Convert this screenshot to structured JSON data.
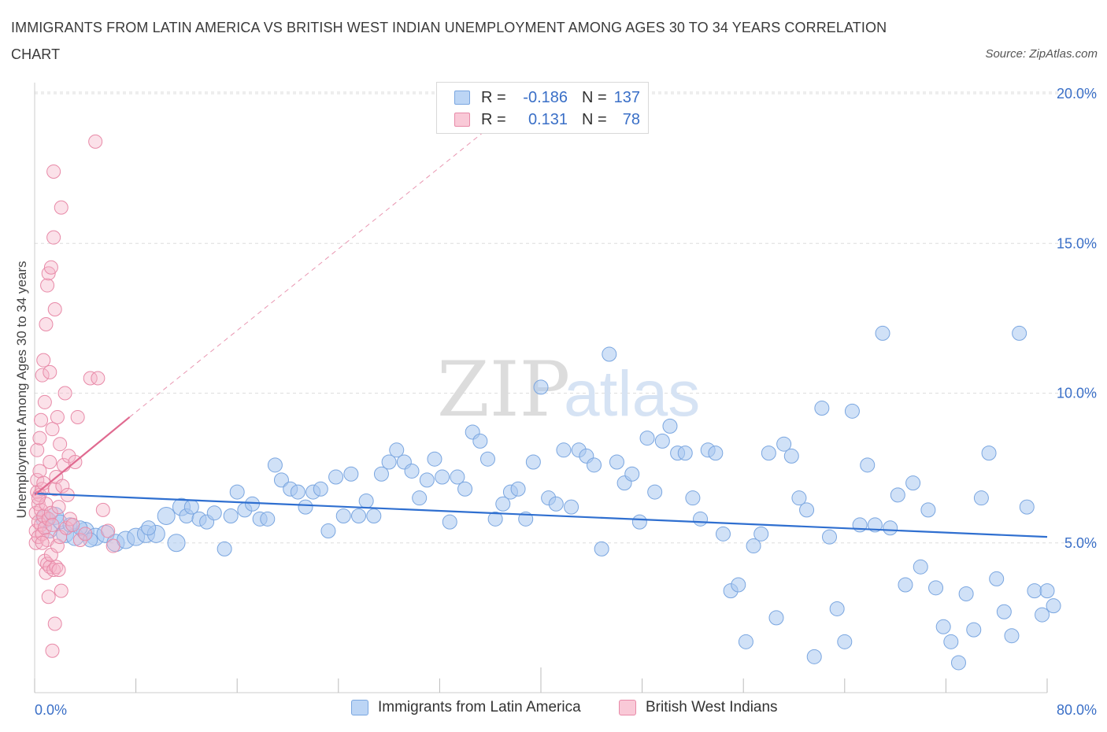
{
  "title": "IMMIGRANTS FROM LATIN AMERICA VS BRITISH WEST INDIAN UNEMPLOYMENT AMONG AGES 30 TO 34 YEARS CORRELATION CHART",
  "source": "Source: ZipAtlas.com",
  "watermark": {
    "zip": "ZIP",
    "atlas": "atlas"
  },
  "legend": {
    "series1": {
      "r_label": "R =",
      "r_value": "-0.186",
      "n_label": "N =",
      "n_value": "137",
      "color": "#a9c8f0"
    },
    "series2": {
      "r_label": "R =",
      "r_value": "0.131",
      "n_label": "N =",
      "n_value": "78",
      "color": "#f5b5c8"
    }
  },
  "bottom_legend": {
    "series1_label": "Immigrants from Latin America",
    "series2_label": "British West Indians"
  },
  "chart_data": {
    "type": "scatter",
    "title": "IMMIGRANTS FROM LATIN AMERICA VS BRITISH WEST INDIAN UNEMPLOYMENT AMONG AGES 30 TO 34 YEARS CORRELATION CHART",
    "xlabel": "",
    "ylabel": "Unemployment Among Ages 30 to 34 years",
    "xlim": [
      0,
      80
    ],
    "ylim": [
      0,
      20.5
    ],
    "x_tick_labels": [
      "0.0%",
      "80.0%"
    ],
    "y_ticks": [
      5,
      10,
      15,
      20
    ],
    "y_tick_labels": [
      "5.0%",
      "10.0%",
      "15.0%",
      "20.0%"
    ],
    "colors": {
      "series1": "#a9c8f0",
      "series1_edge": "#7aa6e0",
      "series1_line": "#2f6fd0",
      "series2": "#f5b5c8",
      "series2_edge": "#e88aa8",
      "series2_line": "#e06a90",
      "axis_text": "#3a6fc7",
      "grid": "#dddddd"
    },
    "series": [
      {
        "name": "Immigrants from Latin America",
        "trend": {
          "x": [
            0,
            80
          ],
          "y": [
            6.65,
            5.2
          ]
        },
        "points": [
          [
            0.8,
            5.8
          ],
          [
            1.6,
            5.9
          ],
          [
            2.4,
            5.3
          ],
          [
            3.2,
            5.2
          ],
          [
            4.0,
            5.4
          ],
          [
            4.8,
            5.2
          ],
          [
            5.6,
            5.3
          ],
          [
            6.4,
            5.0
          ],
          [
            7.2,
            5.1
          ],
          [
            8.0,
            5.2
          ],
          [
            8.8,
            5.3
          ],
          [
            9.6,
            5.3
          ],
          [
            10.4,
            5.9
          ],
          [
            11.2,
            5.0
          ],
          [
            11.6,
            6.2
          ],
          [
            12.0,
            5.9
          ],
          [
            12.4,
            6.2
          ],
          [
            13.0,
            5.8
          ],
          [
            13.6,
            5.7
          ],
          [
            14.2,
            6.0
          ],
          [
            15.0,
            4.8
          ],
          [
            15.5,
            5.9
          ],
          [
            16.0,
            6.7
          ],
          [
            16.6,
            6.1
          ],
          [
            17.2,
            6.3
          ],
          [
            17.8,
            5.8
          ],
          [
            18.4,
            5.8
          ],
          [
            19.0,
            7.6
          ],
          [
            19.5,
            7.1
          ],
          [
            20.2,
            6.8
          ],
          [
            20.8,
            6.7
          ],
          [
            21.4,
            6.2
          ],
          [
            22.0,
            6.7
          ],
          [
            22.6,
            6.8
          ],
          [
            23.2,
            5.4
          ],
          [
            23.8,
            7.2
          ],
          [
            24.4,
            5.9
          ],
          [
            25.0,
            7.3
          ],
          [
            25.6,
            5.9
          ],
          [
            26.2,
            6.4
          ],
          [
            26.8,
            5.9
          ],
          [
            27.4,
            7.3
          ],
          [
            28.0,
            7.7
          ],
          [
            28.6,
            8.1
          ],
          [
            29.2,
            7.7
          ],
          [
            29.8,
            7.4
          ],
          [
            30.4,
            6.5
          ],
          [
            31.0,
            7.1
          ],
          [
            31.6,
            7.8
          ],
          [
            32.2,
            7.2
          ],
          [
            32.8,
            5.7
          ],
          [
            33.4,
            7.2
          ],
          [
            34.0,
            6.8
          ],
          [
            34.6,
            8.7
          ],
          [
            35.2,
            8.4
          ],
          [
            35.8,
            7.8
          ],
          [
            36.4,
            5.8
          ],
          [
            37.0,
            6.3
          ],
          [
            37.6,
            6.7
          ],
          [
            38.2,
            6.8
          ],
          [
            38.8,
            5.8
          ],
          [
            39.4,
            7.7
          ],
          [
            40.0,
            10.2
          ],
          [
            40.6,
            6.5
          ],
          [
            41.2,
            6.3
          ],
          [
            41.8,
            8.1
          ],
          [
            42.4,
            6.2
          ],
          [
            43.0,
            8.1
          ],
          [
            43.6,
            7.9
          ],
          [
            44.2,
            7.6
          ],
          [
            44.8,
            4.8
          ],
          [
            45.4,
            11.3
          ],
          [
            46.0,
            7.7
          ],
          [
            46.6,
            7.0
          ],
          [
            47.2,
            7.3
          ],
          [
            47.8,
            5.7
          ],
          [
            48.4,
            8.5
          ],
          [
            49.0,
            6.7
          ],
          [
            49.6,
            8.4
          ],
          [
            50.2,
            8.9
          ],
          [
            50.8,
            8.0
          ],
          [
            51.4,
            8.0
          ],
          [
            52.0,
            6.5
          ],
          [
            52.6,
            5.8
          ],
          [
            53.2,
            8.1
          ],
          [
            53.8,
            8.0
          ],
          [
            54.4,
            5.3
          ],
          [
            55.0,
            3.4
          ],
          [
            55.6,
            3.6
          ],
          [
            56.2,
            1.7
          ],
          [
            56.8,
            4.9
          ],
          [
            57.4,
            5.3
          ],
          [
            58.0,
            8.0
          ],
          [
            58.6,
            2.5
          ],
          [
            59.2,
            8.3
          ],
          [
            59.8,
            7.9
          ],
          [
            60.4,
            6.5
          ],
          [
            61.0,
            6.1
          ],
          [
            61.6,
            1.2
          ],
          [
            62.2,
            9.5
          ],
          [
            62.8,
            5.2
          ],
          [
            63.4,
            2.8
          ],
          [
            64.0,
            1.7
          ],
          [
            64.6,
            9.4
          ],
          [
            65.2,
            5.6
          ],
          [
            65.8,
            7.6
          ],
          [
            66.4,
            5.6
          ],
          [
            67.0,
            12.0
          ],
          [
            67.6,
            5.5
          ],
          [
            68.2,
            6.6
          ],
          [
            68.8,
            3.6
          ],
          [
            69.4,
            7.0
          ],
          [
            70.0,
            4.2
          ],
          [
            70.6,
            6.1
          ],
          [
            71.2,
            3.5
          ],
          [
            71.8,
            2.2
          ],
          [
            72.4,
            1.7
          ],
          [
            73.0,
            1.0
          ],
          [
            73.6,
            3.3
          ],
          [
            74.2,
            2.1
          ],
          [
            74.8,
            6.5
          ],
          [
            75.4,
            8.0
          ],
          [
            76.0,
            3.8
          ],
          [
            76.6,
            2.7
          ],
          [
            77.2,
            1.9
          ],
          [
            77.8,
            12.0
          ],
          [
            78.4,
            6.2
          ],
          [
            79.0,
            3.4
          ],
          [
            79.6,
            2.6
          ],
          [
            80.0,
            3.4
          ],
          [
            80.5,
            2.9
          ],
          [
            9.0,
            5.5
          ],
          [
            1.2,
            5.4
          ],
          [
            2.0,
            5.7
          ],
          [
            2.8,
            5.6
          ],
          [
            3.6,
            5.5
          ],
          [
            4.4,
            5.1
          ]
        ]
      },
      {
        "name": "British West Indians",
        "trend": {
          "x": [
            0,
            7.5
          ],
          "y": [
            6.6,
            9.2
          ]
        },
        "trend_extension": {
          "x": [
            7.5,
            36
          ],
          "y": [
            9.2,
            18.9
          ]
        },
        "points": [
          [
            0.1,
            5.0
          ],
          [
            0.1,
            5.4
          ],
          [
            0.1,
            6.0
          ],
          [
            0.2,
            6.7
          ],
          [
            0.2,
            7.1
          ],
          [
            0.2,
            8.1
          ],
          [
            0.3,
            5.2
          ],
          [
            0.3,
            5.7
          ],
          [
            0.3,
            6.3
          ],
          [
            0.4,
            6.6
          ],
          [
            0.4,
            7.4
          ],
          [
            0.4,
            8.5
          ],
          [
            0.5,
            5.6
          ],
          [
            0.5,
            6.1
          ],
          [
            0.5,
            9.1
          ],
          [
            0.6,
            5.3
          ],
          [
            0.6,
            6.8
          ],
          [
            0.6,
            10.6
          ],
          [
            0.7,
            5.9
          ],
          [
            0.7,
            7.0
          ],
          [
            0.7,
            11.1
          ],
          [
            0.8,
            4.4
          ],
          [
            0.8,
            5.5
          ],
          [
            0.8,
            9.7
          ],
          [
            0.9,
            4.0
          ],
          [
            0.9,
            6.3
          ],
          [
            0.9,
            12.3
          ],
          [
            1.0,
            4.3
          ],
          [
            1.0,
            5.1
          ],
          [
            1.0,
            13.6
          ],
          [
            1.1,
            3.2
          ],
          [
            1.1,
            5.8
          ],
          [
            1.1,
            14.0
          ],
          [
            1.2,
            4.2
          ],
          [
            1.2,
            7.7
          ],
          [
            1.2,
            10.7
          ],
          [
            1.3,
            4.6
          ],
          [
            1.3,
            6.0
          ],
          [
            1.3,
            14.2
          ],
          [
            1.4,
            1.4
          ],
          [
            1.4,
            5.6
          ],
          [
            1.4,
            8.8
          ],
          [
            1.5,
            4.1
          ],
          [
            1.5,
            15.2
          ],
          [
            1.5,
            17.4
          ],
          [
            1.6,
            2.3
          ],
          [
            1.6,
            6.8
          ],
          [
            1.6,
            12.8
          ],
          [
            1.7,
            4.2
          ],
          [
            1.7,
            7.2
          ],
          [
            1.8,
            4.9
          ],
          [
            1.8,
            9.2
          ],
          [
            1.9,
            4.1
          ],
          [
            1.9,
            6.2
          ],
          [
            2.0,
            5.2
          ],
          [
            2.0,
            8.3
          ],
          [
            2.1,
            3.4
          ],
          [
            2.1,
            16.2
          ],
          [
            2.2,
            6.9
          ],
          [
            2.3,
            7.6
          ],
          [
            2.4,
            10.0
          ],
          [
            2.5,
            5.5
          ],
          [
            2.6,
            6.6
          ],
          [
            2.7,
            7.9
          ],
          [
            2.8,
            5.8
          ],
          [
            3.0,
            5.6
          ],
          [
            3.2,
            7.7
          ],
          [
            3.4,
            9.2
          ],
          [
            3.6,
            5.1
          ],
          [
            4.0,
            5.3
          ],
          [
            4.4,
            10.5
          ],
          [
            4.8,
            18.4
          ],
          [
            5.0,
            10.5
          ],
          [
            5.4,
            6.1
          ],
          [
            5.8,
            5.4
          ],
          [
            6.2,
            4.9
          ],
          [
            0.3,
            6.5
          ],
          [
            0.6,
            5.0
          ]
        ]
      }
    ]
  }
}
